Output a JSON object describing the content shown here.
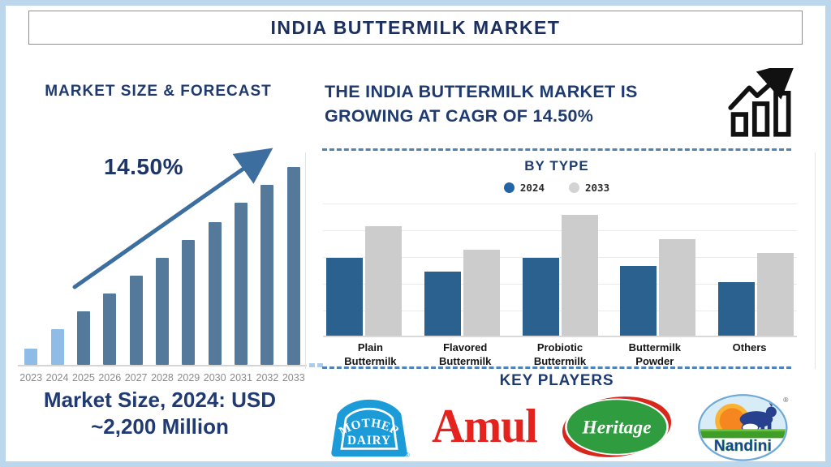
{
  "header": {
    "title": "INDIA BUTTERMILK MARKET"
  },
  "left_panel": {
    "heading": "MARKET SIZE & FORECAST",
    "growth_label": "14.50%",
    "market_size_line1": "Market Size, 2024: USD",
    "market_size_line2": "~2,200 Million"
  },
  "right_panel": {
    "headline_line1": "THE INDIA BUTTERMILK MARKET IS",
    "headline_line2": "GROWING AT CAGR OF 14.50%",
    "by_type_heading": "BY TYPE",
    "key_players_heading": "KEY PLAYERS"
  },
  "key_players": [
    {
      "name": "Mother Dairy",
      "line1": "MOTHER",
      "line2": "DAIRY",
      "trademark": "®",
      "brand_color": "#1b9cd9"
    },
    {
      "name": "Amul",
      "text": "Amul",
      "brand_color": "#e4231e"
    },
    {
      "name": "Heritage",
      "text": "Heritage",
      "brand_color": "#2e9c3f"
    },
    {
      "name": "Nandini",
      "text": "Nandini",
      "trademark": "®",
      "brand_color": "#1c3f9e"
    }
  ],
  "chart_data": [
    {
      "type": "bar",
      "title": "MARKET SIZE & FORECAST",
      "categories": [
        "2023",
        "2024",
        "2025",
        "2026",
        "2027",
        "2028",
        "2029",
        "2030",
        "2031",
        "2032",
        "2033"
      ],
      "values": [
        8,
        18,
        27,
        36,
        45,
        54,
        63,
        72,
        82,
        91,
        100
      ],
      "units": "percent of tallest (2033) bar; no numeric axis shown",
      "annotation": "14.50%",
      "anchor_value_text": "Market Size, 2024: USD ~2,200 Million",
      "bar_color": "#54799b",
      "bar_color_highlight": "#8fbce6",
      "highlight_count": 2,
      "xlabel": "",
      "ylabel": "",
      "grid": false,
      "legend": false
    },
    {
      "type": "bar",
      "title": "BY TYPE",
      "categories": [
        "Plain\nButtermilk",
        "Flavored\nButtermilk",
        "Probiotic\nButtermilk",
        "Buttermilk\nPowder",
        "Others"
      ],
      "series": [
        {
          "name": "2024",
          "color": "#2a618f",
          "values": [
            2.9,
            2.4,
            2.9,
            2.6,
            2.0
          ]
        },
        {
          "name": "2033",
          "color": "#cccccc",
          "values": [
            4.1,
            3.2,
            4.5,
            3.6,
            3.1
          ]
        }
      ],
      "ylim": [
        0,
        5
      ],
      "units": "relative scale estimated from unlabeled gridlines",
      "grid": true,
      "legend_position": "top",
      "legend_dot_colors": {
        "2024": "#2264a4",
        "2033": "#d3d3d3"
      }
    }
  ],
  "colors": {
    "accent_navy": "#1e3a6e",
    "frame_blue": "#bcd7ec",
    "dashed_line_blue": "#4f83b8",
    "trend_arrow_blue": "#3c6e9f",
    "year_label_gray": "#8b8b8b"
  }
}
